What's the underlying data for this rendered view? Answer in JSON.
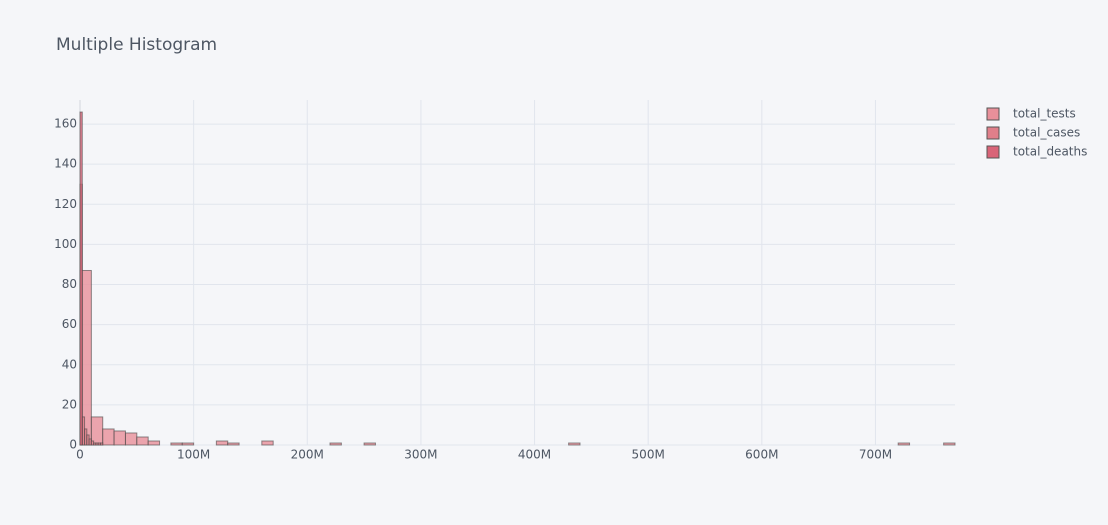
{
  "chart_data": {
    "type": "histogram",
    "title": "Multiple Histogram",
    "xlim": [
      0,
      770000000
    ],
    "ylim": [
      0,
      172
    ],
    "xticks": [
      0,
      {
        "value": 100000000,
        "label": "100M"
      },
      {
        "value": 200000000,
        "label": "200M"
      },
      {
        "value": 300000000,
        "label": "300M"
      },
      {
        "value": 400000000,
        "label": "400M"
      },
      {
        "value": 500000000,
        "label": "500M"
      },
      {
        "value": 600000000,
        "label": "600M"
      },
      {
        "value": 700000000,
        "label": "700M"
      }
    ],
    "yticks": [
      0,
      20,
      40,
      60,
      80,
      100,
      120,
      140,
      160
    ],
    "grid": true,
    "legend": "top-right",
    "series": [
      {
        "name": "total_tests",
        "color": "#e8909a",
        "bins": [
          0,
          10000000,
          20000000,
          30000000,
          40000000,
          50000000,
          60000000,
          70000000,
          80000000,
          90000000,
          100000000,
          110000000,
          120000000,
          130000000,
          140000000,
          150000000,
          160000000,
          170000000,
          180000000,
          190000000,
          200000000,
          210000000,
          220000000,
          230000000,
          240000000,
          250000000,
          260000000,
          270000000,
          280000000,
          290000000,
          300000000,
          310000000,
          320000000,
          330000000,
          340000000,
          350000000,
          360000000,
          370000000,
          380000000,
          390000000,
          400000000,
          410000000,
          420000000,
          430000000,
          440000000,
          450000000,
          460000000,
          470000000,
          480000000,
          490000000,
          500000000,
          510000000,
          520000000,
          530000000,
          540000000,
          550000000,
          560000000,
          570000000,
          580000000,
          590000000,
          600000000,
          610000000,
          620000000,
          630000000,
          640000000,
          650000000,
          660000000,
          670000000,
          680000000,
          690000000,
          700000000,
          710000000,
          720000000,
          730000000,
          740000000,
          750000000,
          760000000,
          770000000
        ],
        "values": [
          87,
          14,
          8,
          7,
          6,
          4,
          2,
          0,
          1,
          1,
          0,
          0,
          2,
          1,
          0,
          0,
          2,
          0,
          0,
          0,
          0,
          0,
          1,
          0,
          0,
          1,
          0,
          0,
          0,
          0,
          0,
          0,
          0,
          0,
          0,
          0,
          0,
          0,
          0,
          0,
          0,
          0,
          0,
          1,
          0,
          0,
          0,
          0,
          0,
          0,
          0,
          0,
          0,
          0,
          0,
          0,
          0,
          0,
          0,
          0,
          0,
          0,
          0,
          0,
          0,
          0,
          0,
          0,
          0,
          0,
          0,
          0,
          1,
          0,
          0,
          0,
          1
        ]
      },
      {
        "name": "total_cases",
        "color": "#e07f8a",
        "bins": [
          0,
          2000000,
          4000000,
          6000000,
          8000000,
          10000000,
          12000000,
          14000000,
          16000000,
          18000000,
          20000000
        ],
        "values": [
          130,
          14,
          8,
          5,
          3,
          2,
          1,
          1,
          1,
          1
        ]
      },
      {
        "name": "total_deaths",
        "color": "#d96478",
        "bins": [
          0,
          2000000
        ],
        "values": [
          166
        ]
      }
    ]
  }
}
